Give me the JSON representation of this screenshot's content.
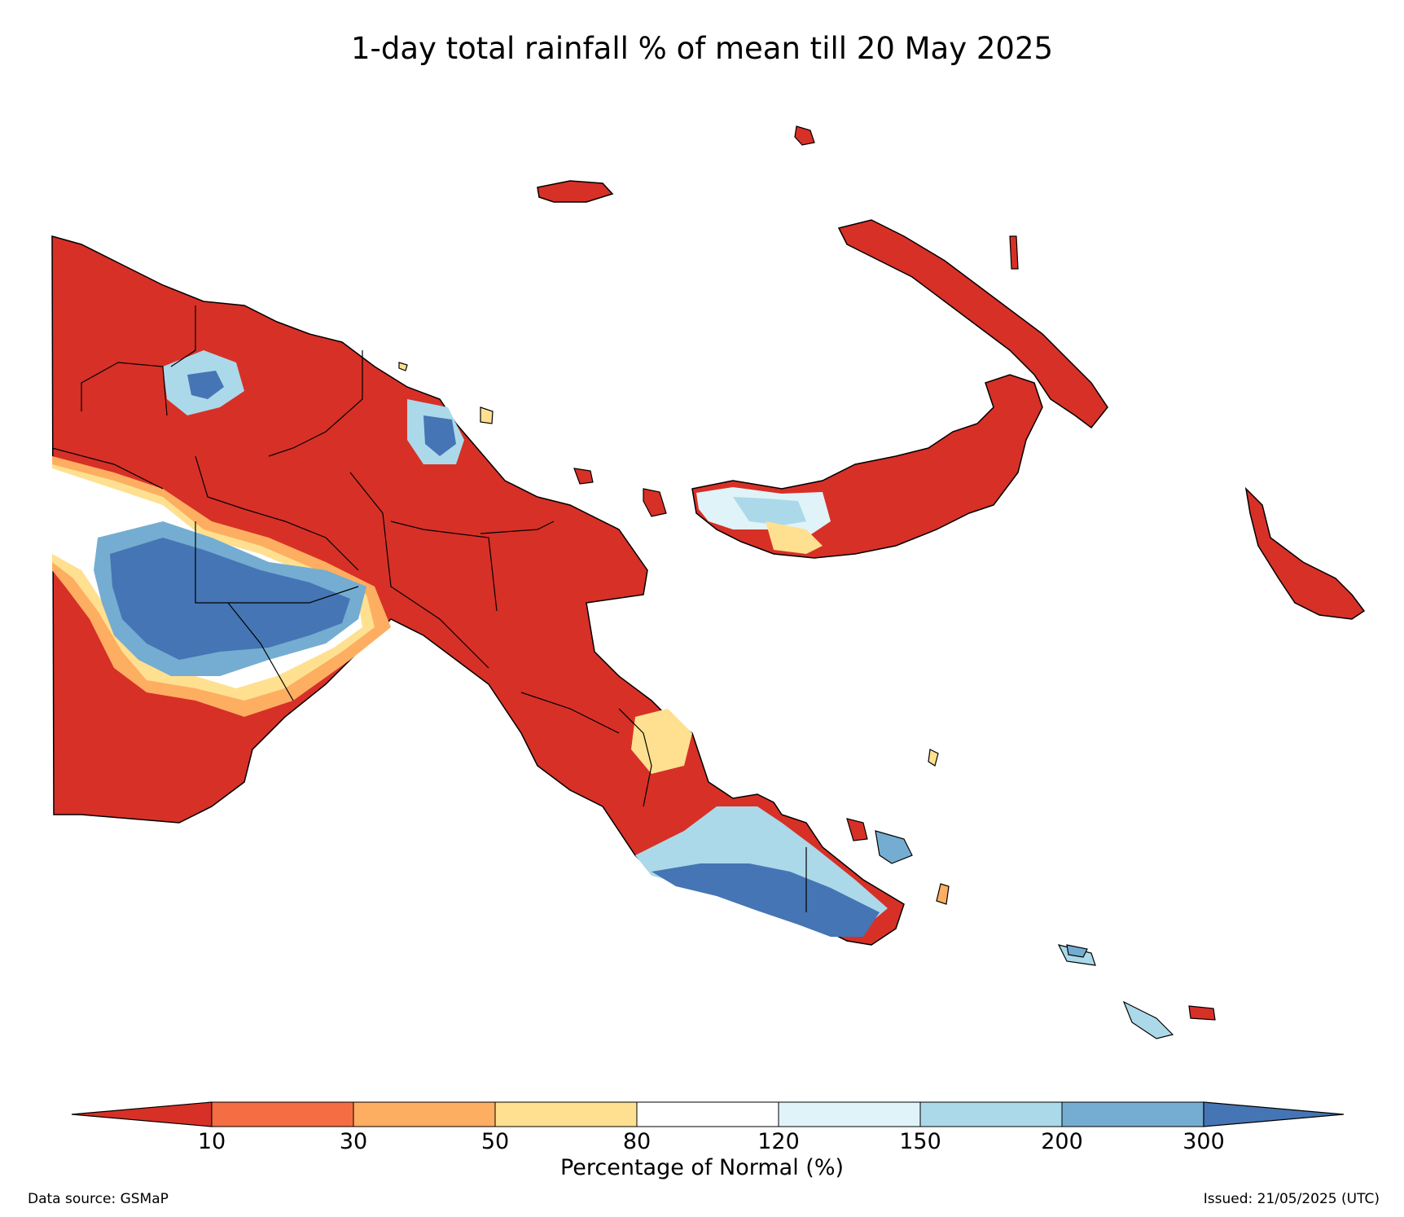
{
  "title": "1-day total rainfall % of mean till 20 May 2025",
  "legend": {
    "label": "Percentage of Normal (%)",
    "ticks": [
      "10",
      "30",
      "50",
      "80",
      "120",
      "150",
      "200",
      "300"
    ],
    "bins": [
      {
        "range": "<10",
        "color": "#d73027"
      },
      {
        "range": "10-30",
        "color": "#f46d43"
      },
      {
        "range": "30-50",
        "color": "#fdae61"
      },
      {
        "range": "50-80",
        "color": "#fee090"
      },
      {
        "range": "80-120",
        "color": "#ffffff"
      },
      {
        "range": "120-150",
        "color": "#e0f3f8"
      },
      {
        "range": "150-200",
        "color": "#abd9e9"
      },
      {
        "range": "200-300",
        "color": "#74add1"
      },
      {
        "range": ">300",
        "color": "#4575b4"
      }
    ]
  },
  "footer": {
    "source": "Data source: GSMaP",
    "issued": "Issued: 21/05/2025 (UTC)"
  }
}
